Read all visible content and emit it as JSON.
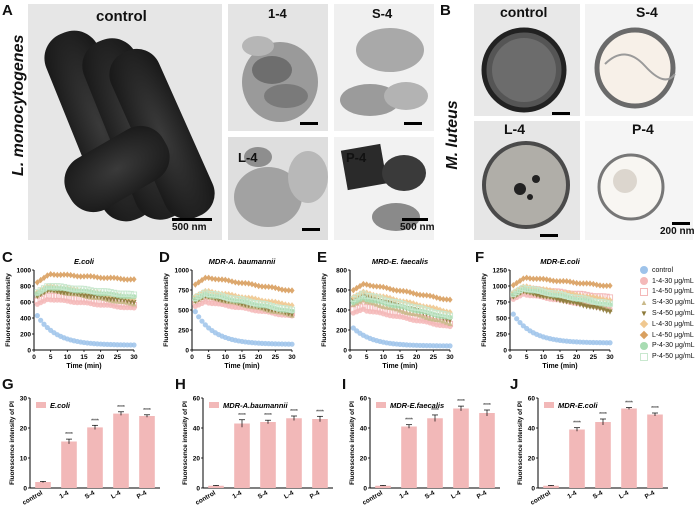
{
  "panels": {
    "A": "A",
    "B": "B",
    "C": "C",
    "D": "D",
    "E": "E",
    "F": "F",
    "G": "G",
    "H": "H",
    "I": "I",
    "J": "J"
  },
  "panel_a": {
    "species": "L. monocytogenes",
    "images": [
      {
        "label": "control",
        "scale": "500 nm"
      },
      {
        "label": "1-4",
        "scale": ""
      },
      {
        "label": "S-4",
        "scale": ""
      },
      {
        "label": "L-4",
        "scale": ""
      },
      {
        "label": "P-4",
        "scale": "500 nm"
      }
    ]
  },
  "panel_b": {
    "species": "M. luteus",
    "images": [
      {
        "label": "control",
        "scale": ""
      },
      {
        "label": "S-4",
        "scale": ""
      },
      {
        "label": "L-4",
        "scale": ""
      },
      {
        "label": "P-4",
        "scale": "200 nm"
      }
    ]
  },
  "legend": {
    "items": [
      {
        "label": "control",
        "color": "#9ec3ea",
        "shape": "circle"
      },
      {
        "label": "1-4-30 μg/mL",
        "color": "#f4b9b9",
        "shape": "circle"
      },
      {
        "label": "1-4-50 μg/mL",
        "color": "#f4b9b9",
        "shape": "square"
      },
      {
        "label": "S-4-30 μg/mL",
        "color": "#c9b98a",
        "shape": "triangle"
      },
      {
        "label": "S-4-50 μg/mL",
        "color": "#8c7a3a",
        "shape": "triangle-down"
      },
      {
        "label": "L-4-30 μg/mL",
        "color": "#f0c890",
        "shape": "diamond"
      },
      {
        "label": "L-4-50 μg/mL",
        "color": "#d9a060",
        "shape": "diamond"
      },
      {
        "label": "P-4-30 μg/mL",
        "color": "#a8dcb2",
        "shape": "circle"
      },
      {
        "label": "P-4-50 μg/mL",
        "color": "#c9e8cf",
        "shape": "square"
      }
    ]
  },
  "chart_data": [
    {
      "id": "C",
      "type": "scatter",
      "title": "E.coli",
      "xlabel": "Time (min)",
      "ylabel": "Fluorescence intensity",
      "xlim": [
        0,
        30
      ],
      "ylim": [
        0,
        1000
      ],
      "xticks": [
        0,
        5,
        10,
        15,
        20,
        25,
        30
      ],
      "yticks": [
        0,
        200,
        400,
        600,
        800,
        1000
      ],
      "x": [
        1,
        2,
        3,
        4,
        5,
        6,
        7,
        8,
        9,
        10,
        11,
        12,
        13,
        14,
        15,
        16,
        17,
        18,
        19,
        20,
        21,
        22,
        23,
        24,
        25,
        26,
        27,
        28,
        29,
        30
      ],
      "series": [
        {
          "name": "control",
          "start": 430,
          "end": 60
        },
        {
          "name": "1-4-30 μg/mL",
          "start": 650,
          "end": 520
        },
        {
          "name": "1-4-50 μg/mL",
          "start": 700,
          "end": 560
        },
        {
          "name": "S-4-30 μg/mL",
          "start": 780,
          "end": 580
        },
        {
          "name": "S-4-50 μg/mL",
          "start": 760,
          "end": 600
        },
        {
          "name": "L-4-30 μg/mL",
          "start": 820,
          "end": 650
        },
        {
          "name": "L-4-50 μg/mL",
          "start": 960,
          "end": 880
        },
        {
          "name": "P-4-30 μg/mL",
          "start": 800,
          "end": 660
        },
        {
          "name": "P-4-50 μg/mL",
          "start": 820,
          "end": 690
        }
      ]
    },
    {
      "id": "D",
      "type": "scatter",
      "title": "MDR-A. baumannii",
      "xlabel": "Time (min)",
      "ylabel": "Fluorescence intensity",
      "xlim": [
        0,
        30
      ],
      "ylim": [
        0,
        1000
      ],
      "xticks": [
        0,
        5,
        10,
        15,
        20,
        25,
        30
      ],
      "yticks": [
        0,
        250,
        500,
        750,
        1000
      ],
      "series": [
        {
          "name": "control",
          "start": 480,
          "end": 70
        },
        {
          "name": "1-4-30 μg/mL",
          "start": 620,
          "end": 420
        },
        {
          "name": "1-4-50 μg/mL",
          "start": 680,
          "end": 460
        },
        {
          "name": "S-4-30 μg/mL",
          "start": 700,
          "end": 440
        },
        {
          "name": "S-4-50 μg/mL",
          "start": 690,
          "end": 450
        },
        {
          "name": "L-4-30 μg/mL",
          "start": 760,
          "end": 560
        },
        {
          "name": "L-4-50 μg/mL",
          "start": 930,
          "end": 740
        },
        {
          "name": "P-4-30 μg/mL",
          "start": 720,
          "end": 480
        },
        {
          "name": "P-4-50 μg/mL",
          "start": 740,
          "end": 500
        }
      ]
    },
    {
      "id": "E",
      "type": "scatter",
      "title": "MRD-E. faecalis",
      "xlabel": "Time (min)",
      "ylabel": "Fluorescence intensity",
      "xlim": [
        0,
        30
      ],
      "ylim": [
        0,
        800
      ],
      "xticks": [
        0,
        5,
        10,
        15,
        20,
        25,
        30
      ],
      "yticks": [
        0,
        200,
        400,
        600,
        800
      ],
      "series": [
        {
          "name": "control",
          "start": 220,
          "end": 40
        },
        {
          "name": "1-4-30 μg/mL",
          "start": 420,
          "end": 230
        },
        {
          "name": "1-4-50 μg/mL",
          "start": 460,
          "end": 260
        },
        {
          "name": "S-4-30 μg/mL",
          "start": 520,
          "end": 270
        },
        {
          "name": "S-4-50 μg/mL",
          "start": 560,
          "end": 300
        },
        {
          "name": "L-4-30 μg/mL",
          "start": 600,
          "end": 380
        },
        {
          "name": "L-4-50 μg/mL",
          "start": 680,
          "end": 500
        },
        {
          "name": "P-4-30 μg/mL",
          "start": 540,
          "end": 320
        },
        {
          "name": "P-4-50 μg/mL",
          "start": 580,
          "end": 340
        }
      ]
    },
    {
      "id": "F",
      "type": "scatter",
      "title": "MDR-E.coli",
      "xlabel": "Time (min)",
      "ylabel": "Fluorescence intensity",
      "xlim": [
        0,
        30
      ],
      "ylim": [
        0,
        1250
      ],
      "xticks": [
        0,
        5,
        10,
        15,
        20,
        25,
        30
      ],
      "yticks": [
        0,
        250,
        500,
        750,
        1000,
        1250
      ],
      "series": [
        {
          "name": "control",
          "start": 560,
          "end": 110
        },
        {
          "name": "1-4-30 μg/mL",
          "start": 900,
          "end": 640
        },
        {
          "name": "1-4-50 μg/mL",
          "start": 980,
          "end": 820
        },
        {
          "name": "S-4-30 μg/mL",
          "start": 960,
          "end": 640
        },
        {
          "name": "S-4-50 μg/mL",
          "start": 940,
          "end": 600
        },
        {
          "name": "L-4-30 μg/mL",
          "start": 1020,
          "end": 780
        },
        {
          "name": "L-4-50 μg/mL",
          "start": 1150,
          "end": 1000
        },
        {
          "name": "P-4-30 μg/mL",
          "start": 980,
          "end": 700
        },
        {
          "name": "P-4-50 μg/mL",
          "start": 1000,
          "end": 720
        }
      ]
    },
    {
      "id": "G",
      "type": "bar",
      "legend": "E.coli",
      "ylabel": "Fluorescence intensity of PI",
      "ylim": [
        0,
        30
      ],
      "yticks": [
        0,
        10,
        20,
        30
      ],
      "categories": [
        "control",
        "1-4",
        "S-4",
        "L-4",
        "P-4"
      ],
      "values": [
        2,
        15.5,
        20.2,
        24.8,
        24
      ],
      "errors": [
        0.2,
        0.8,
        0.7,
        0.6,
        0.4
      ],
      "significance": [
        "",
        "****",
        "****",
        "****",
        "****"
      ]
    },
    {
      "id": "H",
      "type": "bar",
      "legend": "MDR-A.baumannii",
      "ylabel": "Fluorescence intensity of PI",
      "ylim": [
        0,
        60
      ],
      "yticks": [
        0,
        20,
        40,
        60
      ],
      "categories": [
        "control",
        "1-4",
        "S-4",
        "L-4",
        "P-4"
      ],
      "values": [
        1.5,
        43,
        44,
        46.5,
        46
      ],
      "errors": [
        0.2,
        2.5,
        1.2,
        1.5,
        1.8
      ],
      "significance": [
        "",
        "****",
        "****",
        "****",
        "****"
      ]
    },
    {
      "id": "I",
      "type": "bar",
      "legend": "MDR-E.faecalis",
      "ylabel": "Fluorescence intensity of PI",
      "ylim": [
        0,
        60
      ],
      "yticks": [
        0,
        20,
        40,
        60
      ],
      "categories": [
        "control",
        "1-4",
        "S-4",
        "L-4",
        "P-4"
      ],
      "values": [
        1.5,
        41,
        46.5,
        53,
        50
      ],
      "errors": [
        0.2,
        1.2,
        2.2,
        1.6,
        2.0
      ],
      "significance": [
        "",
        "****",
        "****",
        "****",
        "****"
      ]
    },
    {
      "id": "J",
      "type": "bar",
      "legend": "MDR-E.coli",
      "ylabel": "Fluorescence intensity of PI",
      "ylim": [
        0,
        60
      ],
      "yticks": [
        0,
        20,
        40,
        60
      ],
      "categories": [
        "control",
        "1-4",
        "S-4",
        "L-4",
        "P-4"
      ],
      "values": [
        1.5,
        39,
        44,
        53,
        49
      ],
      "errors": [
        0.2,
        1.2,
        2.0,
        0.6,
        1.0
      ],
      "significance": [
        "",
        "****",
        "****",
        "****",
        "****"
      ]
    }
  ]
}
